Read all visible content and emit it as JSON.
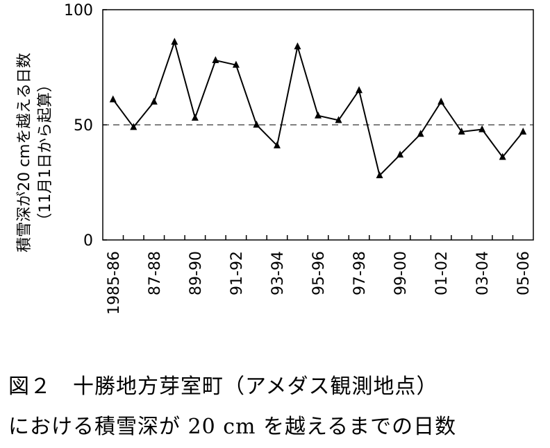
{
  "chart_data": {
    "type": "line",
    "ylabel_line1": "積雪深が20 cmを越える日数",
    "ylabel_line2": "（11月1日から起算）",
    "ylim": [
      0,
      100
    ],
    "yticks": [
      "0",
      "50",
      "100"
    ],
    "reference_line": 50,
    "xtick_labels": [
      "1985-86",
      "87-88",
      "89-90",
      "91-92",
      "93-94",
      "95-96",
      "97-98",
      "99-00",
      "01-02",
      "03-04",
      "05-06"
    ],
    "values": [
      61,
      49,
      60,
      86,
      53,
      78,
      76,
      50,
      41,
      84,
      54,
      52,
      65,
      28,
      37,
      46,
      60,
      47,
      48,
      36,
      47
    ],
    "grid": false,
    "series_color": "#000000"
  },
  "caption": {
    "line1": "図２　十勝地方芽室町（アメダス観測地点）",
    "line2": "における積雪深が 20 cm を越えるまでの日数"
  }
}
